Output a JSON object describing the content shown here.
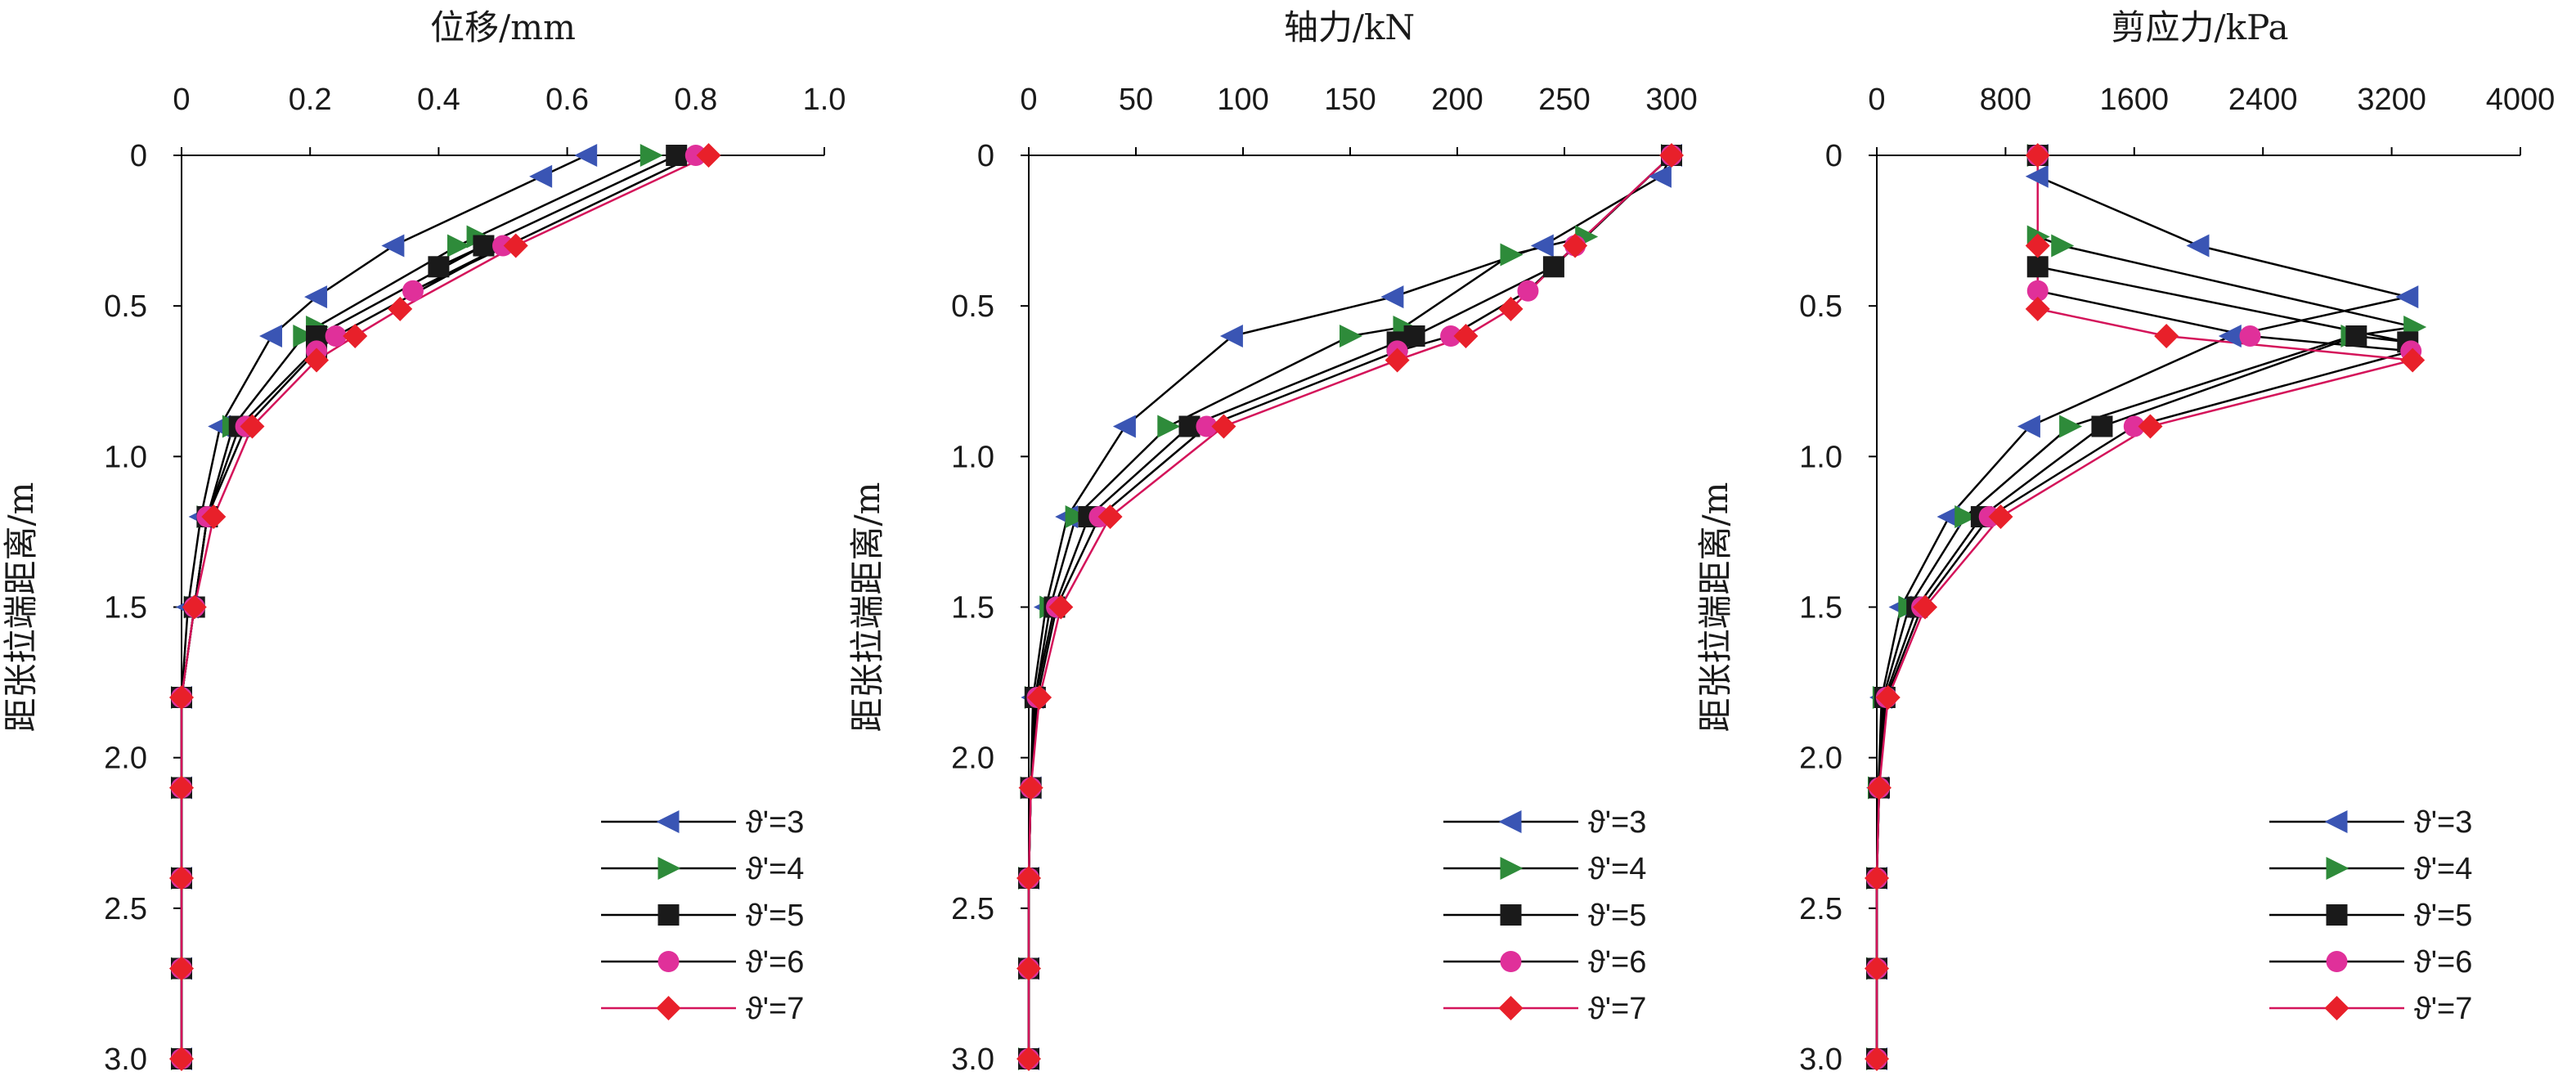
{
  "chart_data": [
    {
      "type": "line",
      "title": "位移/mm",
      "xlabel": "",
      "ylabel": "距张拉端距离/m",
      "xlim": [
        0,
        1.0
      ],
      "ylim": [
        0,
        3.0
      ],
      "x_ticks": [
        "0",
        "0.2",
        "0.4",
        "0.6",
        "0.8",
        "1.0"
      ],
      "y_ticks": [
        "0",
        "0.5",
        "1.0",
        "1.5",
        "2.0",
        "2.5",
        "3.0"
      ],
      "axis_position": "top",
      "y_reversed": true,
      "grid": false,
      "legend_position": "bottom-right",
      "series": [
        {
          "name": "ϑ'=3",
          "marker": "tri-left",
          "color": "#3a55b4",
          "line": "#000000",
          "points": [
            [
              0.63,
              0
            ],
            [
              0.56,
              0.07
            ],
            [
              0.33,
              0.3
            ],
            [
              0.21,
              0.47
            ],
            [
              0.14,
              0.6
            ],
            [
              0.06,
              0.9
            ],
            [
              0.03,
              1.2
            ],
            [
              0.01,
              1.5
            ],
            [
              0,
              1.8
            ],
            [
              0,
              2.1
            ],
            [
              0,
              2.4
            ],
            [
              0,
              2.7
            ],
            [
              0,
              3.0
            ]
          ]
        },
        {
          "name": "ϑ'=4",
          "marker": "tri-right",
          "color": "#2e8b3a",
          "line": "#000000",
          "points": [
            [
              0.73,
              0
            ],
            [
              0.46,
              0.27
            ],
            [
              0.43,
              0.3
            ],
            [
              0.21,
              0.57
            ],
            [
              0.19,
              0.6
            ],
            [
              0.08,
              0.9
            ],
            [
              0.04,
              1.2
            ],
            [
              0.02,
              1.5
            ],
            [
              0,
              1.8
            ],
            [
              0,
              2.1
            ],
            [
              0,
              2.4
            ],
            [
              0,
              2.7
            ],
            [
              0,
              3.0
            ]
          ]
        },
        {
          "name": "ϑ'=5",
          "marker": "square",
          "color": "#1a1a1a",
          "line": "#000000",
          "points": [
            [
              0.77,
              0
            ],
            [
              0.4,
              0.37
            ],
            [
              0.47,
              0.3
            ],
            [
              0.21,
              0.6
            ],
            [
              0.21,
              0.64
            ],
            [
              0.09,
              0.9
            ],
            [
              0.04,
              1.2
            ],
            [
              0.02,
              1.5
            ],
            [
              0,
              1.8
            ],
            [
              0,
              2.1
            ],
            [
              0,
              2.4
            ],
            [
              0,
              2.7
            ],
            [
              0,
              3.0
            ]
          ]
        },
        {
          "name": "ϑ'=6",
          "marker": "circle",
          "color": "#e0309a",
          "line": "#000000",
          "points": [
            [
              0.8,
              0
            ],
            [
              0.36,
              0.45
            ],
            [
              0.5,
              0.3
            ],
            [
              0.24,
              0.6
            ],
            [
              0.21,
              0.65
            ],
            [
              0.1,
              0.9
            ],
            [
              0.04,
              1.2
            ],
            [
              0.02,
              1.5
            ],
            [
              0,
              1.8
            ],
            [
              0,
              2.1
            ],
            [
              0,
              2.4
            ],
            [
              0,
              2.7
            ],
            [
              0,
              3.0
            ]
          ]
        },
        {
          "name": "ϑ'=7",
          "marker": "diamond",
          "color": "#e8202a",
          "line": "#d4145a",
          "points": [
            [
              0.82,
              0
            ],
            [
              0.52,
              0.3
            ],
            [
              0.34,
              0.51
            ],
            [
              0.27,
              0.6
            ],
            [
              0.21,
              0.68
            ],
            [
              0.11,
              0.9
            ],
            [
              0.05,
              1.2
            ],
            [
              0.02,
              1.5
            ],
            [
              0,
              1.8
            ],
            [
              0,
              2.1
            ],
            [
              0,
              2.4
            ],
            [
              0,
              2.7
            ],
            [
              0,
              3.0
            ]
          ]
        }
      ]
    },
    {
      "type": "line",
      "title": "轴力/kN",
      "xlabel": "",
      "ylabel": "距张拉端距离/m",
      "xlim": [
        0,
        300
      ],
      "ylim": [
        0,
        3.0
      ],
      "x_ticks": [
        "0",
        "50",
        "100",
        "150",
        "200",
        "250",
        "300"
      ],
      "y_ticks": [
        "0",
        "0.5",
        "1.0",
        "1.5",
        "2.0",
        "2.5",
        "3.0"
      ],
      "axis_position": "top",
      "y_reversed": true,
      "grid": false,
      "legend_position": "bottom-right",
      "series": [
        {
          "name": "ϑ'=3",
          "marker": "tri-left",
          "color": "#3a55b4",
          "line": "#000000",
          "points": [
            [
              300,
              0
            ],
            [
              295,
              0.07
            ],
            [
              240,
              0.3
            ],
            [
              170,
              0.47
            ],
            [
              95,
              0.6
            ],
            [
              45,
              0.9
            ],
            [
              18,
              1.2
            ],
            [
              8,
              1.5
            ],
            [
              2,
              1.8
            ],
            [
              1,
              2.1
            ],
            [
              0,
              2.4
            ],
            [
              0,
              2.7
            ],
            [
              0,
              3.0
            ]
          ]
        },
        {
          "name": "ϑ'=4",
          "marker": "tri-right",
          "color": "#2e8b3a",
          "line": "#000000",
          "points": [
            [
              300,
              0
            ],
            [
              260,
              0.27
            ],
            [
              225,
              0.33
            ],
            [
              175,
              0.57
            ],
            [
              150,
              0.6
            ],
            [
              65,
              0.9
            ],
            [
              22,
              1.2
            ],
            [
              10,
              1.5
            ],
            [
              3,
              1.8
            ],
            [
              1,
              2.1
            ],
            [
              0,
              2.4
            ],
            [
              0,
              2.7
            ],
            [
              0,
              3.0
            ]
          ]
        },
        {
          "name": "ϑ'=5",
          "marker": "square",
          "color": "#1a1a1a",
          "line": "#000000",
          "points": [
            [
              300,
              0
            ],
            [
              245,
              0.37
            ],
            [
              180,
              0.6
            ],
            [
              172,
              0.62
            ],
            [
              75,
              0.9
            ],
            [
              28,
              1.2
            ],
            [
              12,
              1.5
            ],
            [
              3,
              1.8
            ],
            [
              1,
              2.1
            ],
            [
              0,
              2.4
            ],
            [
              0,
              2.7
            ],
            [
              0,
              3.0
            ]
          ]
        },
        {
          "name": "ϑ'=6",
          "marker": "circle",
          "color": "#e0309a",
          "line": "#000000",
          "points": [
            [
              300,
              0
            ],
            [
              255,
              0.3
            ],
            [
              233,
              0.45
            ],
            [
              197,
              0.6
            ],
            [
              172,
              0.65
            ],
            [
              83,
              0.9
            ],
            [
              33,
              1.2
            ],
            [
              13,
              1.5
            ],
            [
              4,
              1.8
            ],
            [
              1,
              2.1
            ],
            [
              0,
              2.4
            ],
            [
              0,
              2.7
            ],
            [
              0,
              3.0
            ]
          ]
        },
        {
          "name": "ϑ'=7",
          "marker": "diamond",
          "color": "#e8202a",
          "line": "#d4145a",
          "points": [
            [
              300,
              0
            ],
            [
              255,
              0.3
            ],
            [
              225,
              0.51
            ],
            [
              204,
              0.6
            ],
            [
              172,
              0.68
            ],
            [
              91,
              0.9
            ],
            [
              38,
              1.2
            ],
            [
              15,
              1.5
            ],
            [
              5,
              1.8
            ],
            [
              1,
              2.1
            ],
            [
              0,
              2.4
            ],
            [
              0,
              2.7
            ],
            [
              0,
              3.0
            ]
          ]
        }
      ]
    },
    {
      "type": "line",
      "title": "剪应力/kPa",
      "xlabel": "",
      "ylabel": "距张拉端距离/m",
      "xlim": [
        0,
        4000
      ],
      "ylim": [
        0,
        3.0
      ],
      "x_ticks": [
        "0",
        "800",
        "1600",
        "2400",
        "3200",
        "4000"
      ],
      "y_ticks": [
        "0",
        "0.5",
        "1.0",
        "1.5",
        "2.0",
        "2.5",
        "3.0"
      ],
      "axis_position": "top",
      "y_reversed": true,
      "grid": false,
      "legend_position": "bottom-right",
      "series": [
        {
          "name": "ϑ'=3",
          "marker": "tri-left",
          "color": "#3a55b4",
          "line": "#000000",
          "points": [
            [
              1000,
              0
            ],
            [
              1000,
              0.07
            ],
            [
              2000,
              0.3
            ],
            [
              3300,
              0.47
            ],
            [
              2200,
              0.6
            ],
            [
              950,
              0.9
            ],
            [
              450,
              1.2
            ],
            [
              150,
              1.5
            ],
            [
              30,
              1.8
            ],
            [
              10,
              2.1
            ],
            [
              0,
              2.4
            ],
            [
              0,
              2.7
            ],
            [
              0,
              3.0
            ]
          ]
        },
        {
          "name": "ϑ'=4",
          "marker": "tri-right",
          "color": "#2e8b3a",
          "line": "#000000",
          "points": [
            [
              1000,
              0
            ],
            [
              1000,
              0.27
            ],
            [
              1150,
              0.3
            ],
            [
              3340,
              0.57
            ],
            [
              2950,
              0.6
            ],
            [
              1200,
              0.9
            ],
            [
              550,
              1.2
            ],
            [
              200,
              1.5
            ],
            [
              40,
              1.8
            ],
            [
              10,
              2.1
            ],
            [
              0,
              2.4
            ],
            [
              0,
              2.7
            ],
            [
              0,
              3.0
            ]
          ]
        },
        {
          "name": "ϑ'=5",
          "marker": "square",
          "color": "#1a1a1a",
          "line": "#000000",
          "points": [
            [
              1000,
              0
            ],
            [
              1000,
              0.37
            ],
            [
              3300,
              0.62
            ],
            [
              2980,
              0.6
            ],
            [
              1400,
              0.9
            ],
            [
              650,
              1.2
            ],
            [
              250,
              1.5
            ],
            [
              50,
              1.8
            ],
            [
              15,
              2.1
            ],
            [
              0,
              2.4
            ],
            [
              0,
              2.7
            ],
            [
              0,
              3.0
            ]
          ]
        },
        {
          "name": "ϑ'=6",
          "marker": "circle",
          "color": "#e0309a",
          "line": "#000000",
          "points": [
            [
              1000,
              0
            ],
            [
              1000,
              0.45
            ],
            [
              2320,
              0.6
            ],
            [
              3320,
              0.65
            ],
            [
              1600,
              0.9
            ],
            [
              700,
              1.2
            ],
            [
              280,
              1.5
            ],
            [
              60,
              1.8
            ],
            [
              15,
              2.1
            ],
            [
              0,
              2.4
            ],
            [
              0,
              2.7
            ],
            [
              0,
              3.0
            ]
          ]
        },
        {
          "name": "ϑ'=7",
          "marker": "diamond",
          "color": "#e8202a",
          "line": "#d4145a",
          "points": [
            [
              1000,
              0
            ],
            [
              1000,
              0.3
            ],
            [
              1000,
              0.51
            ],
            [
              1800,
              0.6
            ],
            [
              3330,
              0.68
            ],
            [
              1700,
              0.9
            ],
            [
              770,
              1.2
            ],
            [
              300,
              1.5
            ],
            [
              70,
              1.8
            ],
            [
              15,
              2.1
            ],
            [
              0,
              2.4
            ],
            [
              0,
              2.7
            ],
            [
              0,
              3.0
            ]
          ]
        }
      ]
    }
  ]
}
